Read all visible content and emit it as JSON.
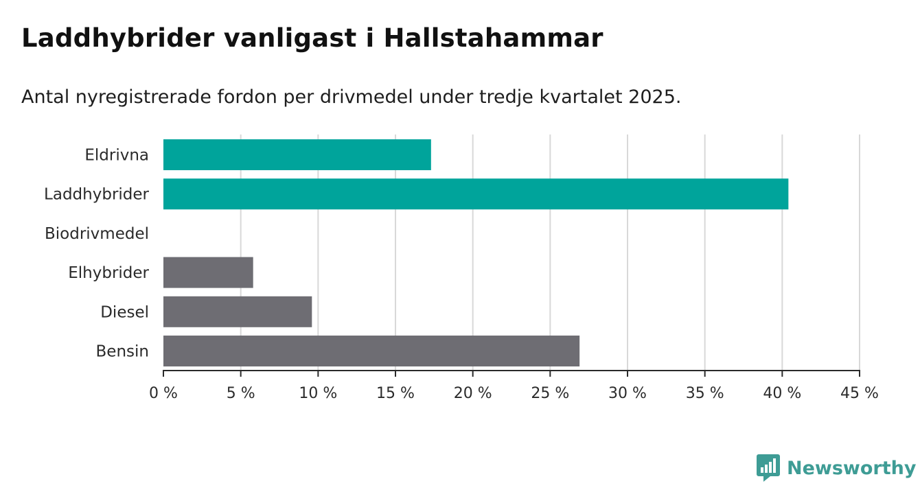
{
  "chart_data": {
    "type": "bar",
    "orientation": "horizontal",
    "title": "Laddhybrider vanligast i Hallstahammar",
    "subtitle": "Antal nyregistrerade fordon per drivmedel under tredje kvartalet 2025.",
    "categories": [
      "Eldrivna",
      "Laddhybrider",
      "Biodrivmedel",
      "Elhybrider",
      "Diesel",
      "Bensin"
    ],
    "values": [
      17.3,
      40.4,
      0,
      5.8,
      9.6,
      26.9
    ],
    "bar_colors": [
      "#00a49b",
      "#00a49b",
      "#00a49b",
      "#6e6d73",
      "#6e6d73",
      "#6e6d73"
    ],
    "xlim": [
      0,
      45
    ],
    "xticks": [
      0,
      5,
      10,
      15,
      20,
      25,
      30,
      35,
      40,
      45
    ],
    "xtick_labels": [
      "0 %",
      "5 %",
      "10 %",
      "15 %",
      "20 %",
      "25 %",
      "30 %",
      "35 %",
      "40 %",
      "45 %"
    ],
    "xlabel": "",
    "ylabel": "",
    "grid": "vertical"
  },
  "brand": {
    "name": "Newsworthy",
    "icon": "newsworthy-logo-icon",
    "color": "#3e9c95"
  }
}
